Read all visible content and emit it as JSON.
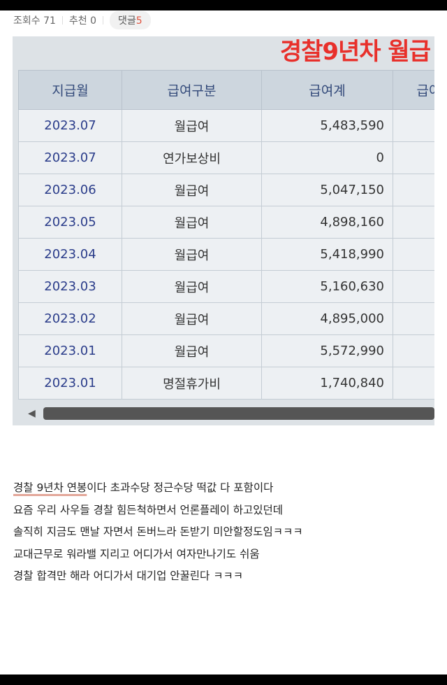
{
  "stats": {
    "views_label": "조회수 71",
    "likes_label": "추천 0",
    "comments_label": "댓글",
    "comments_count": "5"
  },
  "photo": {
    "overlay_text": "경찰9년차 월급",
    "headers": [
      "지급월",
      "급여구분",
      "급여계",
      "급여"
    ],
    "rows": [
      [
        "2023.07",
        "월급여",
        "5,483,590"
      ],
      [
        "2023.07",
        "연가보상비",
        "0"
      ],
      [
        "2023.06",
        "월급여",
        "5,047,150"
      ],
      [
        "2023.05",
        "월급여",
        "4,898,160"
      ],
      [
        "2023.04",
        "월급여",
        "5,418,990"
      ],
      [
        "2023.03",
        "월급여",
        "5,160,630"
      ],
      [
        "2023.02",
        "월급여",
        "4,895,000"
      ],
      [
        "2023.01",
        "월급여",
        "5,572,990"
      ],
      [
        "2023.01",
        "명절휴가비",
        "1,740,840"
      ]
    ]
  },
  "post": {
    "highlight": "경찰 9년차 연봉",
    "line1_rest": "이다 초과수당 정근수당 떡값 다 포함이다",
    "lines": [
      "요즘 우리 사우들 경찰 힘든척하면서 언론플레이 하고있던데",
      "솔직히 지금도 맨날 자면서 돈버느라 돈받기 미안할정도임ㅋㅋㅋ",
      "교대근무로 워라밸 지리고 어디가서 여자만나기도 쉬움",
      "경찰 합격만 해라 어디가서 대기업 안꿀린다 ㅋㅋㅋ"
    ]
  },
  "colors": {
    "overlay": "#e8302b",
    "comment_count": "#e0533f"
  }
}
